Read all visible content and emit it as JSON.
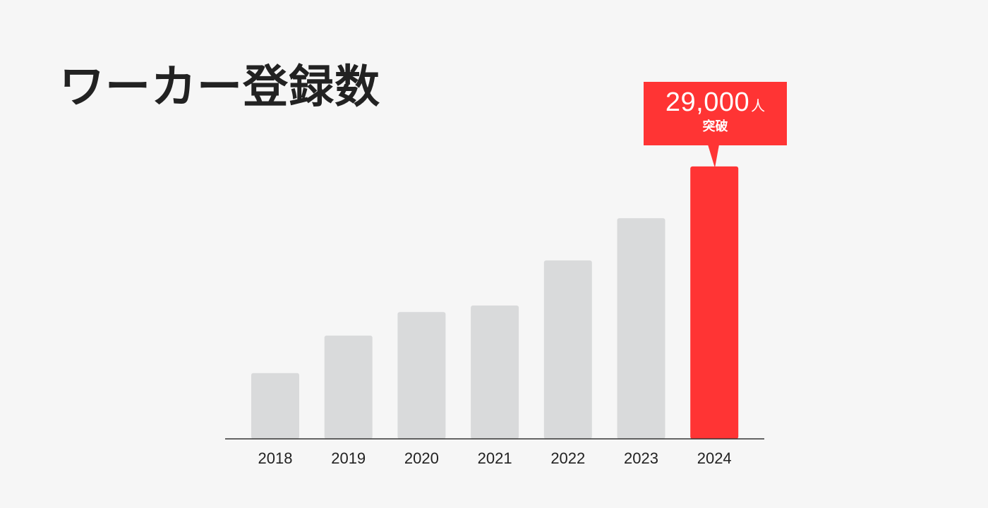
{
  "colors": {
    "background": "#f6f6f6",
    "bar": "#d9dadb",
    "highlight": "#ff3434",
    "axis": "#333333",
    "text": "#222222"
  },
  "callout": {
    "value": "29,000",
    "unit": "人",
    "sub": "突破"
  },
  "chart_data": {
    "type": "bar",
    "title": "ワーカー登録数",
    "categories": [
      "2018",
      "2019",
      "2020",
      "2021",
      "2022",
      "2023",
      "2024"
    ],
    "values": [
      7000,
      11000,
      13500,
      14200,
      19000,
      23500,
      29000
    ],
    "highlight_index": 6,
    "ylim": [
      0,
      32000
    ],
    "grid": false,
    "axes_visible": "x-baseline-only"
  }
}
